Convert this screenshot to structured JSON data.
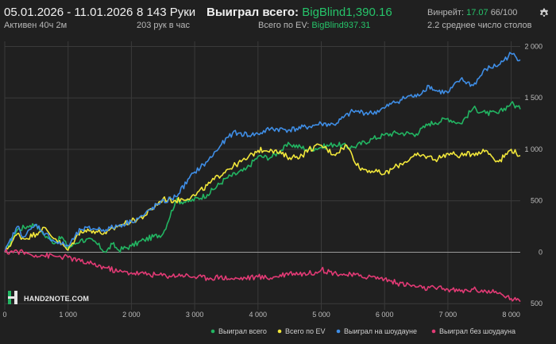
{
  "header": {
    "date_range": "05.01.2026 - 11.01.2026",
    "active": "Активен 40ч 2м",
    "hands": "8 143 Руки",
    "hands_per_hour": "203 рук в час",
    "won_total_label": "Выиграл всего:",
    "won_total_value": "BigBlind1,390.16",
    "ev_label": "Всего по EV:",
    "ev_value": "BigBlind937.31",
    "winrate_label": "Винрейт:",
    "winrate_value": "17.07",
    "winrate_rest": "66/100",
    "tables": "2.2 среднее число столов"
  },
  "logo": "HAND2NOTE.COM",
  "colors": {
    "background": "#202020",
    "won_total": "#22b562",
    "ev": "#f1e63a",
    "showdown": "#3f8ee6",
    "no_showdown": "#e23a75"
  },
  "chart_data": {
    "type": "line",
    "xlim": [
      0,
      8143
    ],
    "ylim": [
      -560,
      2050
    ],
    "x_ticks": [
      0,
      1000,
      2000,
      3000,
      4000,
      5000,
      6000,
      7000,
      8000
    ],
    "x_tick_labels": [
      "0",
      "1 000",
      "2 000",
      "3 000",
      "4 000",
      "5 000",
      "6 000",
      "7 000",
      "8 000"
    ],
    "y_ticks": [
      2000,
      1500,
      1000,
      500,
      0,
      -500
    ],
    "y_tick_labels": [
      "2 000",
      "1 500",
      "1 000",
      "500",
      "0",
      "500"
    ],
    "grid": true,
    "legend_position": "bottom-right",
    "series": [
      {
        "name": "Выиграл всего",
        "color": "#22b562",
        "x": [
          0,
          200,
          400,
          500,
          600,
          800,
          900,
          1000,
          1200,
          1400,
          1600,
          1700,
          1800,
          2000,
          2200,
          2500,
          2700,
          2900,
          3200,
          3500,
          3800,
          4000,
          4200,
          4500,
          4800,
          5000,
          5200,
          5500,
          5800,
          6000,
          6200,
          6500,
          6700,
          6800,
          7000,
          7200,
          7400,
          7600,
          7800,
          8000,
          8143
        ],
        "y": [
          0,
          220,
          260,
          270,
          180,
          90,
          150,
          40,
          120,
          110,
          0,
          80,
          20,
          60,
          120,
          180,
          500,
          490,
          560,
          720,
          800,
          930,
          920,
          1050,
          1000,
          1020,
          1050,
          1020,
          1100,
          1140,
          1160,
          1150,
          1250,
          1260,
          1300,
          1250,
          1400,
          1350,
          1350,
          1450,
          1390
        ]
      },
      {
        "name": "Всего по EV",
        "color": "#f1e63a",
        "x": [
          0,
          200,
          300,
          500,
          600,
          800,
          1000,
          1200,
          1400,
          1600,
          1800,
          2000,
          2200,
          2500,
          2700,
          3000,
          3200,
          3500,
          3800,
          4000,
          4200,
          4500,
          4700,
          4800,
          5000,
          5200,
          5400,
          5600,
          5800,
          6000,
          6200,
          6500,
          6700,
          6800,
          7000,
          7200,
          7400,
          7600,
          7800,
          8000,
          8143
        ],
        "y": [
          0,
          180,
          130,
          180,
          240,
          130,
          20,
          210,
          210,
          180,
          260,
          300,
          350,
          520,
          500,
          550,
          650,
          800,
          900,
          990,
          1000,
          920,
          940,
          1000,
          1040,
          950,
          1040,
          820,
          790,
          760,
          840,
          940,
          930,
          900,
          960,
          940,
          960,
          990,
          880,
          1000,
          940
        ]
      },
      {
        "name": "Выиграл на шоудауне",
        "color": "#3f8ee6",
        "x": [
          0,
          200,
          300,
          500,
          600,
          800,
          900,
          1000,
          1200,
          1400,
          1600,
          1800,
          2000,
          2200,
          2400,
          2700,
          3000,
          3200,
          3400,
          3600,
          3900,
          4000,
          4200,
          4500,
          4800,
          5000,
          5200,
          5500,
          5800,
          6000,
          6100,
          6400,
          6500,
          6700,
          6800,
          7000,
          7200,
          7400,
          7600,
          7800,
          8000,
          8143
        ],
        "y": [
          0,
          250,
          150,
          270,
          200,
          100,
          80,
          60,
          220,
          230,
          220,
          260,
          300,
          360,
          460,
          540,
          780,
          880,
          1030,
          1160,
          1140,
          1150,
          1200,
          1190,
          1220,
          1250,
          1240,
          1370,
          1350,
          1400,
          1440,
          1520,
          1510,
          1620,
          1570,
          1550,
          1680,
          1620,
          1780,
          1820,
          1930,
          1870
        ]
      },
      {
        "name": "Выиграл без шоудауна",
        "color": "#e23a75",
        "x": [
          0,
          200,
          400,
          600,
          800,
          1000,
          1200,
          1400,
          1600,
          1800,
          2000,
          2200,
          2400,
          2600,
          2800,
          3000,
          3200,
          3400,
          3600,
          3800,
          4000,
          4200,
          4500,
          4800,
          5000,
          5200,
          5400,
          5600,
          5800,
          6000,
          6200,
          6400,
          6600,
          6800,
          7000,
          7200,
          7400,
          7600,
          7800,
          8000,
          8143
        ],
        "y": [
          0,
          10,
          -20,
          -30,
          -40,
          -50,
          -90,
          -120,
          -150,
          -190,
          -200,
          -210,
          -220,
          -230,
          -220,
          -240,
          -250,
          -240,
          -260,
          -250,
          -240,
          -250,
          -200,
          -210,
          -170,
          -200,
          -220,
          -230,
          -240,
          -260,
          -300,
          -320,
          -350,
          -350,
          -360,
          -380,
          -360,
          -380,
          -400,
          -450,
          -480
        ]
      }
    ]
  },
  "icons": [
    "settings-icon"
  ]
}
